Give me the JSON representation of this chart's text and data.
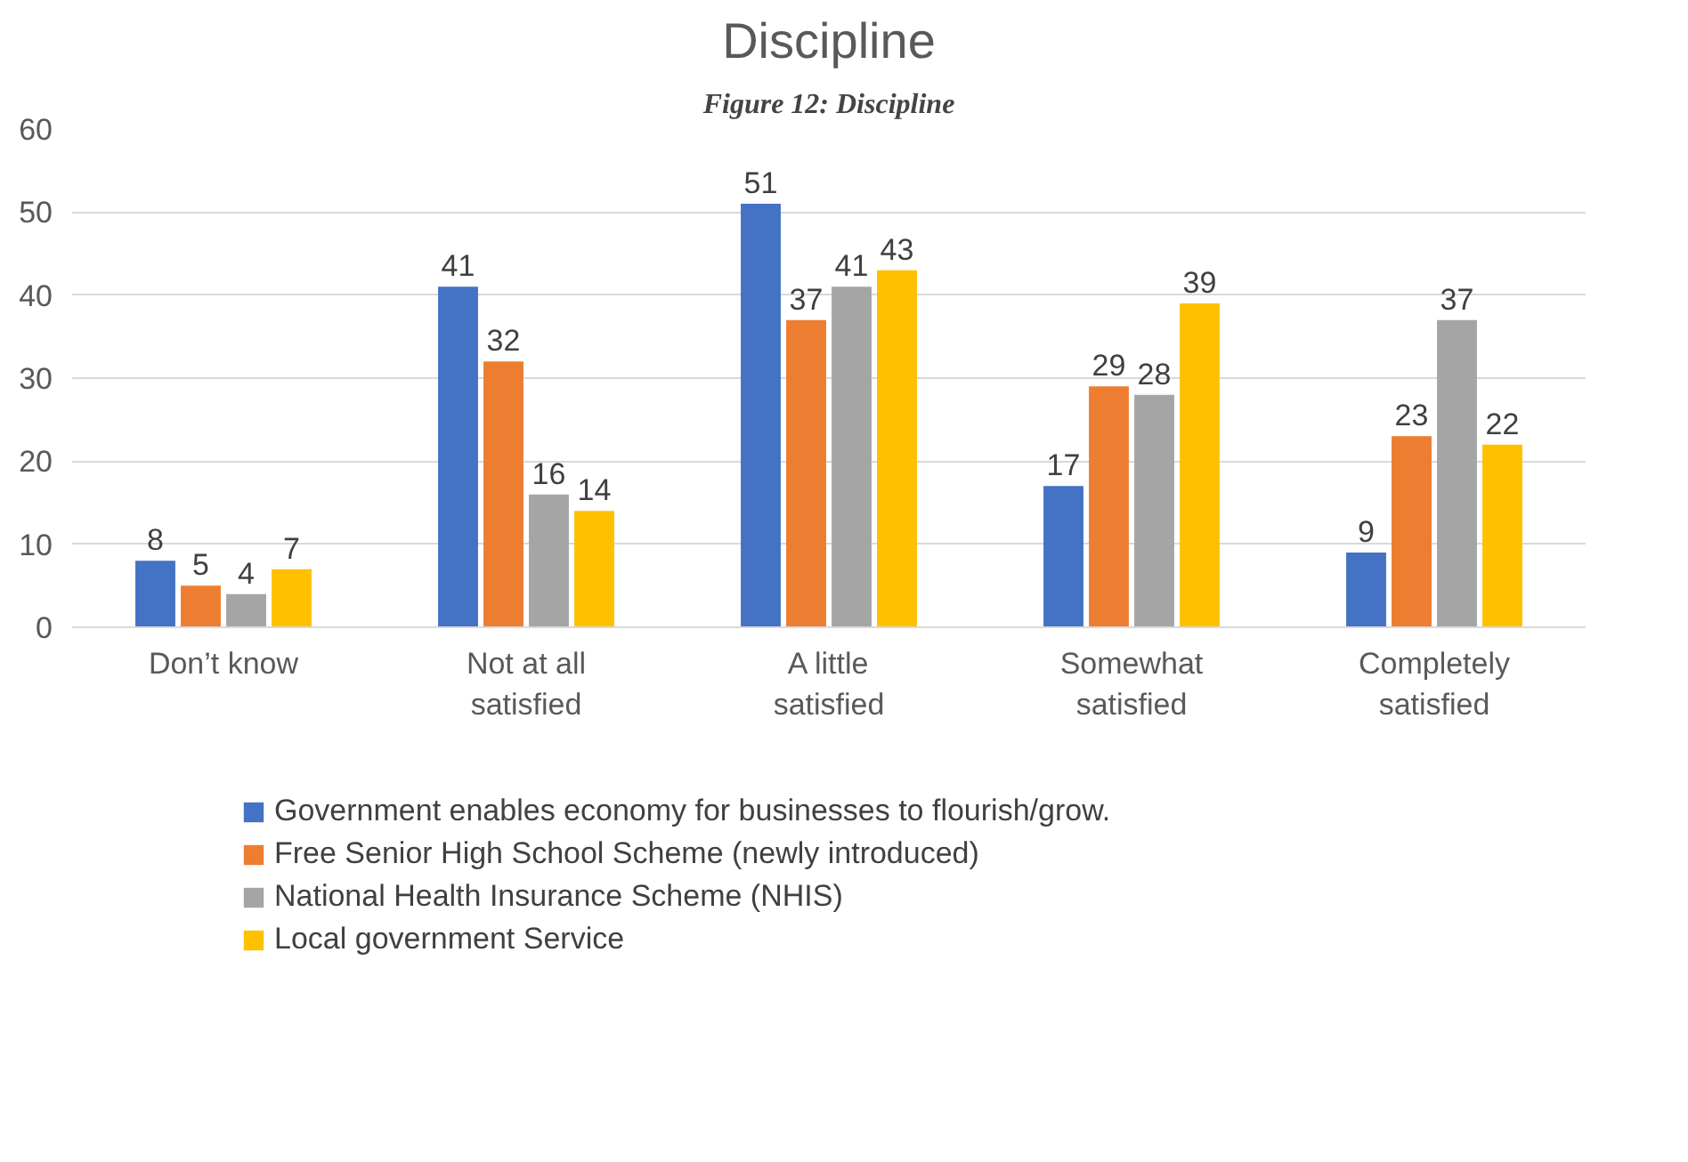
{
  "chart_data": {
    "type": "bar",
    "title": "Discipline",
    "annotations": [
      "Figure 12: Discipline"
    ],
    "categories": [
      "Don’t know",
      "Not at all satisfied",
      "A little satisfied",
      "Somewhat satisfied",
      "Completely satisfied"
    ],
    "series": [
      {
        "name": "Government enables economy for businesses to flourish/grow.",
        "color": "#4472c4",
        "values": [
          8,
          41,
          51,
          17,
          9
        ]
      },
      {
        "name": "Free Senior High School Scheme (newly introduced)",
        "color": "#ed7d31",
        "values": [
          5,
          32,
          37,
          29,
          23
        ]
      },
      {
        "name": "National Health Insurance Scheme (NHIS)",
        "color": "#a5a5a5",
        "values": [
          4,
          16,
          41,
          28,
          37
        ]
      },
      {
        "name": "Local government Service",
        "color": "#ffc000",
        "values": [
          7,
          14,
          43,
          39,
          22
        ]
      }
    ],
    "ylim": [
      0,
      60
    ],
    "yticks": [
      0,
      10,
      20,
      30,
      40,
      50,
      60
    ],
    "grid": "y",
    "legend": "bottom",
    "data_labels": true
  }
}
